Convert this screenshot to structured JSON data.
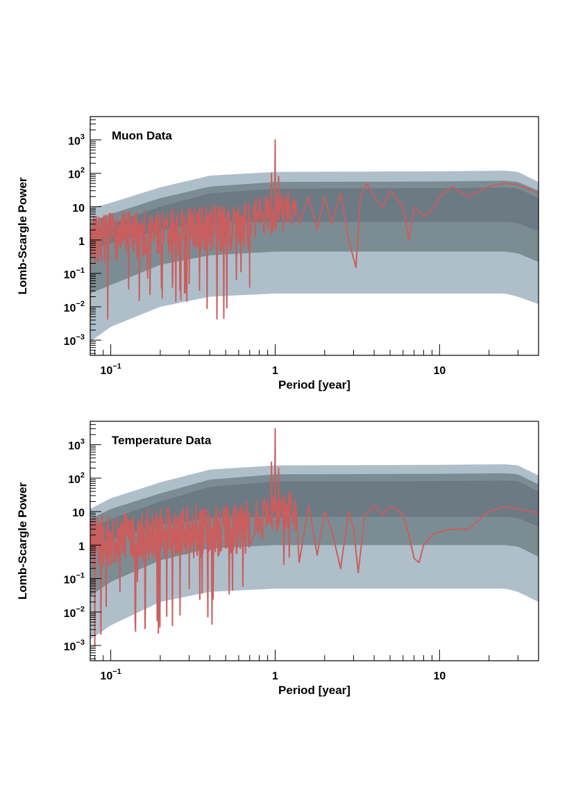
{
  "chart_data": [
    {
      "type": "line",
      "title": "Muon Data",
      "xlabel": "Period [year]",
      "ylabel": "Lomb-Scargle Power",
      "x_scale": "log",
      "y_scale": "log",
      "xlim": [
        0.075,
        40
      ],
      "ylim": [
        0.00035,
        5000
      ],
      "x_ticks": [
        {
          "value": 0.1,
          "base": "10",
          "exp": "−1"
        },
        {
          "value": 1,
          "base": "1",
          "exp": ""
        },
        {
          "value": 10,
          "base": "10",
          "exp": ""
        }
      ],
      "y_ticks": [
        {
          "value": 0.001,
          "base": "10",
          "exp": "−3"
        },
        {
          "value": 0.01,
          "base": "10",
          "exp": "−2"
        },
        {
          "value": 0.1,
          "base": "10",
          "exp": "−1"
        },
        {
          "value": 1,
          "base": "1",
          "exp": ""
        },
        {
          "value": 10,
          "base": "10",
          "exp": ""
        },
        {
          "value": 100,
          "base": "10",
          "exp": "2"
        },
        {
          "value": 1000,
          "base": "10",
          "exp": "3"
        }
      ],
      "bands": [
        {
          "name": "outer band",
          "color": "#afbfca",
          "x": [
            0.075,
            0.1,
            0.2,
            0.4,
            1,
            10,
            25,
            30,
            40
          ],
          "upper": [
            9,
            13,
            38,
            85,
            110,
            115,
            120,
            110,
            55
          ],
          "lower": [
            0.0009,
            0.0025,
            0.01,
            0.02,
            0.025,
            0.025,
            0.025,
            0.02,
            0.012
          ]
        },
        {
          "name": "middle band",
          "color": "#7b8d93",
          "x": [
            0.075,
            0.1,
            0.2,
            0.4,
            1,
            10,
            25,
            30,
            40
          ],
          "upper": [
            3.5,
            6,
            18,
            40,
            55,
            57,
            60,
            55,
            30
          ],
          "lower": [
            0.025,
            0.045,
            0.18,
            0.35,
            0.45,
            0.45,
            0.45,
            0.4,
            0.22
          ]
        },
        {
          "name": "inner band",
          "color": "#6c7a84",
          "x": [
            0.075,
            0.1,
            0.2,
            0.4,
            1,
            10,
            25,
            30,
            40
          ],
          "upper": [
            1.8,
            3,
            10,
            25,
            35,
            36,
            38,
            35,
            18
          ],
          "lower": [
            0.5,
            0.8,
            2,
            3.2,
            3.5,
            3.5,
            3.5,
            3.2,
            1.8
          ]
        }
      ],
      "series": [
        {
          "name": "Muon Lomb-Scargle power",
          "color": "#c85e5e",
          "seed": 7,
          "x": [
            0.075,
            0.08,
            0.1,
            0.15,
            0.2,
            0.3,
            0.4,
            0.5,
            0.6,
            0.7,
            0.8,
            0.9,
            0.95,
            1.0,
            1.05,
            1.1,
            1.2,
            1.4,
            1.6,
            1.8,
            2.0,
            2.2,
            2.5,
            2.8,
            3.1,
            3.3,
            3.6,
            4.0,
            4.5,
            5.0,
            6.0,
            6.5,
            7.0,
            8.0,
            9.0,
            10.0,
            12.0,
            15.0,
            20.0,
            25.0,
            30.0,
            40.0
          ],
          "y": [
            1.5,
            0.2,
            2.0,
            0.5,
            1.0,
            0.05,
            1.5,
            0.8,
            2.5,
            1.0,
            3.0,
            10.0,
            100.0,
            1000.0,
            80.0,
            5.0,
            30.0,
            3.0,
            20.0,
            2.0,
            20.0,
            3.0,
            25.0,
            1.0,
            0.15,
            20.0,
            50.0,
            20.0,
            10.0,
            30.0,
            10.0,
            1.0,
            10.0,
            5.0,
            8.0,
            20.0,
            40.0,
            20.0,
            40.0,
            50.0,
            45.0,
            25.0
          ],
          "noise_segments": [
            {
              "x0": 0.075,
              "x1": 0.7,
              "count": 420,
              "center_start": 1.2,
              "center_end": 3.0,
              "spread_dec": 0.9,
              "dip_min": 0.004,
              "dip_prob": 0.07
            },
            {
              "x0": 0.75,
              "x1": 1.35,
              "count": 70,
              "center_start": 5.0,
              "center_end": 10.0,
              "spread_dec": 0.8,
              "dip_min": 0.1,
              "dip_prob": 0.04
            }
          ]
        }
      ]
    },
    {
      "type": "line",
      "title": "Temperature Data",
      "xlabel": "Period [year]",
      "ylabel": "Lomb-Scargle Power",
      "x_scale": "log",
      "y_scale": "log",
      "xlim": [
        0.075,
        40
      ],
      "ylim": [
        0.00035,
        5000
      ],
      "x_ticks": [
        {
          "value": 0.1,
          "base": "10",
          "exp": "−1"
        },
        {
          "value": 1,
          "base": "1",
          "exp": ""
        },
        {
          "value": 10,
          "base": "10",
          "exp": ""
        }
      ],
      "y_ticks": [
        {
          "value": 0.001,
          "base": "10",
          "exp": "−3"
        },
        {
          "value": 0.01,
          "base": "10",
          "exp": "−2"
        },
        {
          "value": 0.1,
          "base": "10",
          "exp": "−1"
        },
        {
          "value": 1,
          "base": "1",
          "exp": ""
        },
        {
          "value": 10,
          "base": "10",
          "exp": ""
        },
        {
          "value": 100,
          "base": "10",
          "exp": "2"
        },
        {
          "value": 1000,
          "base": "10",
          "exp": "3"
        }
      ],
      "bands": [
        {
          "name": "outer band",
          "color": "#afbfca",
          "x": [
            0.075,
            0.1,
            0.2,
            0.4,
            1,
            10,
            25,
            30,
            40
          ],
          "upper": [
            12,
            25,
            75,
            180,
            240,
            250,
            260,
            240,
            120
          ],
          "lower": [
            0.0015,
            0.004,
            0.02,
            0.04,
            0.05,
            0.05,
            0.05,
            0.04,
            0.02
          ]
        },
        {
          "name": "middle band",
          "color": "#7b8d93",
          "x": [
            0.075,
            0.1,
            0.2,
            0.4,
            1,
            10,
            25,
            30,
            40
          ],
          "upper": [
            6,
            12,
            35,
            90,
            130,
            135,
            140,
            130,
            65
          ],
          "lower": [
            0.03,
            0.08,
            0.35,
            0.8,
            1.0,
            1.0,
            1.0,
            0.9,
            0.45
          ]
        },
        {
          "name": "inner band",
          "color": "#6c7a84",
          "x": [
            0.075,
            0.1,
            0.2,
            0.4,
            1,
            10,
            25,
            30,
            40
          ],
          "upper": [
            3,
            6,
            20,
            55,
            80,
            82,
            85,
            80,
            40
          ],
          "lower": [
            0.8,
            1.5,
            4,
            6.5,
            7,
            7,
            7,
            6.5,
            3.5
          ]
        }
      ],
      "series": [
        {
          "name": "Temperature Lomb-Scargle power",
          "color": "#c85e5e",
          "seed": 21,
          "x": [
            0.075,
            0.08,
            0.1,
            0.15,
            0.2,
            0.3,
            0.4,
            0.5,
            0.6,
            0.7,
            0.8,
            0.9,
            0.95,
            1.0,
            1.05,
            1.1,
            1.2,
            1.4,
            1.6,
            1.8,
            2.0,
            2.2,
            2.5,
            2.8,
            3.0,
            3.2,
            3.5,
            4.0,
            4.5,
            5.0,
            5.5,
            6.0,
            6.5,
            7.0,
            7.5,
            8.0,
            9.0,
            10.0,
            12.0,
            15.0,
            20.0,
            25.0,
            30.0,
            40.0
          ],
          "y": [
            1.0,
            0.001,
            2.0,
            0.5,
            1.0,
            0.05,
            1.5,
            0.8,
            3.0,
            1.0,
            5.0,
            20.0,
            300.0,
            3000.0,
            200.0,
            8.0,
            4.0,
            0.3,
            15.0,
            0.5,
            10.0,
            3.0,
            0.2,
            10.0,
            3.0,
            0.15,
            8.0,
            15.0,
            8.0,
            14.0,
            12.0,
            8.0,
            2.0,
            0.4,
            0.3,
            1.0,
            2.0,
            2.5,
            3.0,
            3.0,
            10.0,
            14.0,
            12.0,
            9.0
          ],
          "noise_segments": [
            {
              "x0": 0.075,
              "x1": 0.7,
              "count": 420,
              "center_start": 1.5,
              "center_end": 4.0,
              "spread_dec": 1.0,
              "dip_min": 0.002,
              "dip_prob": 0.08
            },
            {
              "x0": 0.75,
              "x1": 1.35,
              "count": 70,
              "center_start": 6.0,
              "center_end": 12.0,
              "spread_dec": 0.8,
              "dip_min": 0.2,
              "dip_prob": 0.04
            }
          ]
        }
      ]
    }
  ]
}
